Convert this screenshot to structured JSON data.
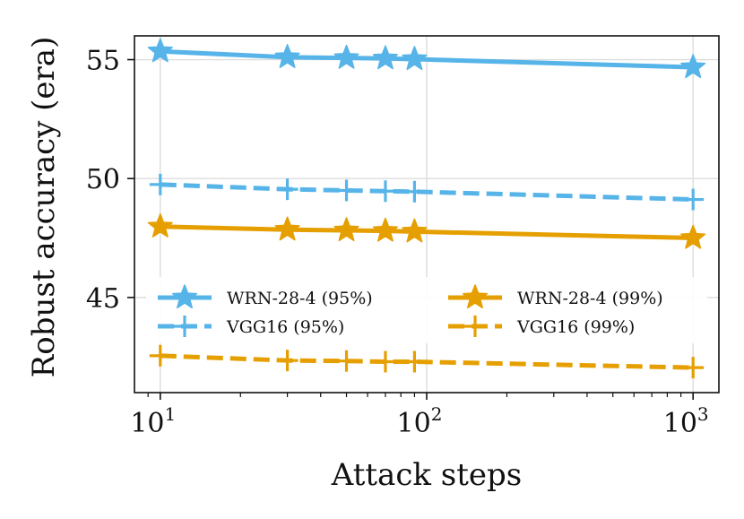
{
  "chart_data": {
    "type": "line",
    "title": "",
    "xlabel": "Attack steps",
    "ylabel": "Robust accuracy (era)",
    "xscale": "log",
    "xlim": [
      8,
      1250
    ],
    "ylim": [
      41.0,
      56.0
    ],
    "grid": true,
    "x_ticks": [
      {
        "value": 10,
        "base": "10",
        "exp": "1"
      },
      {
        "value": 100,
        "base": "10",
        "exp": "2"
      },
      {
        "value": 1000,
        "base": "10",
        "exp": "3"
      }
    ],
    "y_ticks": [
      {
        "value": 45,
        "label": "45"
      },
      {
        "value": 50,
        "label": "50"
      },
      {
        "value": 55,
        "label": "55"
      }
    ],
    "x": [
      10,
      30,
      50,
      70,
      90,
      1000
    ],
    "series": [
      {
        "name": "WRN-28-4 (95%)",
        "color": "#56B4E9",
        "linestyle": "solid",
        "marker": "star",
        "values": [
          55.35,
          55.1,
          55.07,
          55.05,
          55.02,
          54.68
        ]
      },
      {
        "name": "VGG16 (95%)",
        "color": "#56B4E9",
        "linestyle": "dashed",
        "marker": "plus",
        "values": [
          49.75,
          49.55,
          49.5,
          49.47,
          49.45,
          49.12
        ]
      },
      {
        "name": "WRN-28-4 (99%)",
        "color": "#E69F00",
        "linestyle": "solid",
        "marker": "star",
        "values": [
          47.98,
          47.85,
          47.82,
          47.8,
          47.77,
          47.5
        ]
      },
      {
        "name": "VGG16 (99%)",
        "color": "#E69F00",
        "linestyle": "dashed",
        "marker": "plus",
        "values": [
          42.55,
          42.35,
          42.33,
          42.3,
          42.3,
          42.05
        ]
      }
    ],
    "legend": {
      "placement": "center",
      "ncol": 2
    }
  }
}
